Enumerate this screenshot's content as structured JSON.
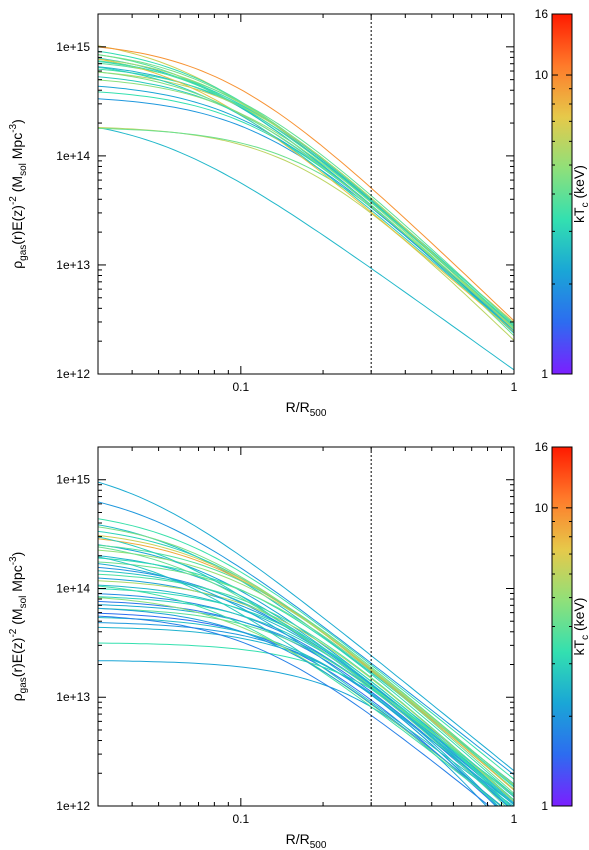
{
  "chart_data": [
    {
      "type": "line",
      "xscale": "log",
      "yscale": "log",
      "xlim": [
        0.03,
        1
      ],
      "ylim": [
        1000000000000.0,
        2000000000000000.0
      ],
      "x_ticks": [
        {
          "value": 0.1,
          "label": "0.1"
        },
        {
          "value": 1,
          "label": "1"
        }
      ],
      "y_ticks": [
        {
          "value": 1000000000000.0,
          "label": "1e+12"
        },
        {
          "value": 10000000000000.0,
          "label": "1e+13"
        },
        {
          "value": 100000000000000.0,
          "label": "1e+14"
        },
        {
          "value": 1000000000000000.0,
          "label": "1e+15"
        }
      ],
      "xlabel": {
        "main": "R/R",
        "sub": "500"
      },
      "ylabel": {
        "main": "ρ",
        "sub1": "gas",
        "mid": "(r)E(z)",
        "sup1": "-2",
        "mid2": " (M",
        "sub2": "sol",
        "mid3": " Mpc",
        "sup2": "-3",
        "end": ")"
      },
      "reference_line_x": 0.3,
      "colorbar": {
        "scale": "log",
        "range": [
          1,
          16
        ],
        "ticks": [
          {
            "value": 1,
            "label": "1"
          },
          {
            "value": 10,
            "label": "10"
          },
          {
            "value": 16,
            "label": "16"
          }
        ],
        "label": {
          "main": "kT",
          "sub": "c",
          "end": " (keV)"
        },
        "colors": [
          "#7b1fff",
          "#2d6cf0",
          "#1aa6d6",
          "#33e0b0",
          "#8fe07a",
          "#e6c94a",
          "#ff7a2a",
          "#ff1a00"
        ]
      },
      "series_param": "beta-model: rho = rho0 (1 + (x/rc)^2)^(-1.5 beta), x = R/R500; kT = colorbar value",
      "series": [
        {
          "rho0": 1300000000000000.0,
          "rc": 0.06,
          "beta": 0.72,
          "kT": 6.5
        },
        {
          "rho0": 1100000000000000.0,
          "rc": 0.07,
          "beta": 0.75,
          "kT": 3.2
        },
        {
          "rho0": 1050000000000000.0,
          "rc": 0.065,
          "beta": 0.73,
          "kT": 3.8
        },
        {
          "rho0": 1000000000000000.0,
          "rc": 0.075,
          "beta": 0.76,
          "kT": 4.4
        },
        {
          "rho0": 950000000000000.0,
          "rc": 0.07,
          "beta": 0.74,
          "kT": 2.6
        },
        {
          "rho0": 900000000000000.0,
          "rc": 0.08,
          "beta": 0.77,
          "kT": 5.2
        },
        {
          "rho0": 1150000000000000.0,
          "rc": 0.085,
          "beta": 0.8,
          "kT": 9.5
        },
        {
          "rho0": 850000000000000.0,
          "rc": 0.08,
          "beta": 0.75,
          "kT": 3.0
        },
        {
          "rho0": 800000000000000.0,
          "rc": 0.09,
          "beta": 0.78,
          "kT": 4.0
        },
        {
          "rho0": 750000000000000.0,
          "rc": 0.085,
          "beta": 0.76,
          "kT": 2.4
        },
        {
          "rho0": 700000000000000.0,
          "rc": 0.095,
          "beta": 0.79,
          "kT": 3.5
        },
        {
          "rho0": 650000000000000.0,
          "rc": 0.1,
          "beta": 0.8,
          "kT": 5.8
        },
        {
          "rho0": 600000000000000.0,
          "rc": 0.09,
          "beta": 0.76,
          "kT": 2.8
        },
        {
          "rho0": 550000000000000.0,
          "rc": 0.1,
          "beta": 0.78,
          "kT": 4.8
        },
        {
          "rho0": 480000000000000.0,
          "rc": 0.1,
          "beta": 0.76,
          "kT": 2.2
        },
        {
          "rho0": 420000000000000.0,
          "rc": 0.11,
          "beta": 0.78,
          "kT": 3.3
        },
        {
          "rho0": 360000000000000.0,
          "rc": 0.115,
          "beta": 0.77,
          "kT": 2.0
        },
        {
          "rho0": 240000000000000.0,
          "rc": 0.05,
          "beta": 0.6,
          "kT": 2.5
        },
        {
          "rho0": 190000000000000.0,
          "rc": 0.16,
          "beta": 0.82,
          "kT": 6.0
        },
        {
          "rho0": 185000000000000.0,
          "rc": 0.18,
          "beta": 0.85,
          "kT": 4.2
        },
        {
          "rho0": 980000000000000.0,
          "rc": 0.06,
          "beta": 0.71,
          "kT": 7.5
        },
        {
          "rho0": 880000000000000.0,
          "rc": 0.075,
          "beta": 0.74,
          "kT": 3.6
        },
        {
          "rho0": 780000000000000.0,
          "rc": 0.07,
          "beta": 0.72,
          "kT": 2.9
        },
        {
          "rho0": 680000000000000.0,
          "rc": 0.08,
          "beta": 0.73,
          "kT": 4.6
        }
      ]
    },
    {
      "type": "line",
      "xscale": "log",
      "yscale": "log",
      "xlim": [
        0.03,
        1
      ],
      "ylim": [
        1000000000000.0,
        2000000000000000.0
      ],
      "x_ticks": [
        {
          "value": 0.1,
          "label": "0.1"
        },
        {
          "value": 1,
          "label": "1"
        }
      ],
      "y_ticks": [
        {
          "value": 1000000000000.0,
          "label": "1e+12"
        },
        {
          "value": 10000000000000.0,
          "label": "1e+13"
        },
        {
          "value": 100000000000000.0,
          "label": "1e+14"
        },
        {
          "value": 1000000000000000.0,
          "label": "1e+15"
        }
      ],
      "xlabel": {
        "main": "R/R",
        "sub": "500"
      },
      "ylabel": {
        "main": "ρ",
        "sub1": "gas",
        "mid": "(r)E(z)",
        "sup1": "-2",
        "mid2": " (M",
        "sub2": "sol",
        "mid3": " Mpc",
        "sup2": "-3",
        "end": ")"
      },
      "reference_line_x": 0.3,
      "colorbar": {
        "scale": "log",
        "range": [
          1,
          16
        ],
        "ticks": [
          {
            "value": 1,
            "label": "1"
          },
          {
            "value": 10,
            "label": "10"
          },
          {
            "value": 16,
            "label": "16"
          }
        ],
        "label": {
          "main": "kT",
          "sub": "c",
          "end": " (keV)"
        },
        "colors": [
          "#7b1fff",
          "#2d6cf0",
          "#1aa6d6",
          "#33e0b0",
          "#8fe07a",
          "#e6c94a",
          "#ff7a2a",
          "#ff1a00"
        ]
      },
      "series_param": "beta-model: rho = rho0 (1 + (x/rc)^2)^(-1.5 beta), x = R/R500; kT = colorbar value",
      "series": [
        {
          "rho0": 1500000000000000.0,
          "rc": 0.04,
          "beta": 0.68,
          "kT": 2.3
        },
        {
          "rho0": 900000000000000.0,
          "rc": 0.045,
          "beta": 0.66,
          "kT": 2.0
        },
        {
          "rho0": 550000000000000.0,
          "rc": 0.06,
          "beta": 0.68,
          "kT": 3.4
        },
        {
          "rho0": 500000000000000.0,
          "rc": 0.055,
          "beta": 0.66,
          "kT": 2.6
        },
        {
          "rho0": 450000000000000.0,
          "rc": 0.065,
          "beta": 0.69,
          "kT": 4.5
        },
        {
          "rho0": 400000000000000.0,
          "rc": 0.07,
          "beta": 0.7,
          "kT": 3.0
        },
        {
          "rho0": 360000000000000.0,
          "rc": 0.075,
          "beta": 0.7,
          "kT": 6.5
        },
        {
          "rho0": 330000000000000.0,
          "rc": 0.08,
          "beta": 0.72,
          "kT": 8.5
        },
        {
          "rho0": 300000000000000.0,
          "rc": 0.07,
          "beta": 0.69,
          "kT": 2.2
        },
        {
          "rho0": 280000000000000.0,
          "rc": 0.09,
          "beta": 0.72,
          "kT": 3.8
        },
        {
          "rho0": 250000000000000.0,
          "rc": 0.095,
          "beta": 0.73,
          "kT": 5.0
        },
        {
          "rho0": 230000000000000.0,
          "rc": 0.08,
          "beta": 0.7,
          "kT": 2.4
        },
        {
          "rho0": 210000000000000.0,
          "rc": 0.1,
          "beta": 0.74,
          "kT": 3.2
        },
        {
          "rho0": 190000000000000.0,
          "rc": 0.11,
          "beta": 0.75,
          "kT": 4.2
        },
        {
          "rho0": 175000000000000.0,
          "rc": 0.09,
          "beta": 0.71,
          "kT": 1.9
        },
        {
          "rho0": 160000000000000.0,
          "rc": 0.1,
          "beta": 0.72,
          "kT": 2.7
        },
        {
          "rho0": 145000000000000.0,
          "rc": 0.12,
          "beta": 0.76,
          "kT": 3.6
        },
        {
          "rho0": 135000000000000.0,
          "rc": 0.11,
          "beta": 0.73,
          "kT": 2.1
        },
        {
          "rho0": 125000000000000.0,
          "rc": 0.13,
          "beta": 0.77,
          "kT": 5.5
        },
        {
          "rho0": 115000000000000.0,
          "rc": 0.12,
          "beta": 0.74,
          "kT": 2.5
        },
        {
          "rho0": 105000000000000.0,
          "rc": 0.14,
          "beta": 0.78,
          "kT": 3.1
        },
        {
          "rho0": 95000000000000.0,
          "rc": 0.13,
          "beta": 0.75,
          "kT": 1.8
        },
        {
          "rho0": 88000000000000.0,
          "rc": 0.15,
          "beta": 0.8,
          "kT": 2.9
        },
        {
          "rho0": 80000000000000.0,
          "rc": 0.14,
          "beta": 0.76,
          "kT": 1.6
        },
        {
          "rho0": 74000000000000.0,
          "rc": 0.16,
          "beta": 0.8,
          "kT": 2.3
        },
        {
          "rho0": 68000000000000.0,
          "rc": 0.17,
          "beta": 0.82,
          "kT": 3.9
        },
        {
          "rho0": 62000000000000.0,
          "rc": 0.15,
          "beta": 0.78,
          "kT": 1.5
        },
        {
          "rho0": 56000000000000.0,
          "rc": 0.18,
          "beta": 0.84,
          "kT": 2.6
        },
        {
          "rho0": 50000000000000.0,
          "rc": 0.2,
          "beta": 0.88,
          "kT": 2.0
        },
        {
          "rho0": 45000000000000.0,
          "rc": 0.22,
          "beta": 0.9,
          "kT": 2.4
        },
        {
          "rho0": 32000000000000.0,
          "rc": 0.3,
          "beta": 0.95,
          "kT": 3.3
        },
        {
          "rho0": 22000000000000.0,
          "rc": 0.32,
          "beta": 1.05,
          "kT": 2.2
        },
        {
          "rho0": 260000000000000.0,
          "rc": 0.05,
          "beta": 0.62,
          "kT": 2.8
        },
        {
          "rho0": 120000000000000.0,
          "rc": 0.08,
          "beta": 0.66,
          "kT": 3.5
        },
        {
          "rho0": 90000000000000.0,
          "rc": 0.1,
          "beta": 0.68,
          "kT": 4.8
        },
        {
          "rho0": 70000000000000.0,
          "rc": 0.12,
          "beta": 0.7,
          "kT": 2.1
        },
        {
          "rho0": 60000000000000.0,
          "rc": 0.11,
          "beta": 0.68,
          "kT": 1.7
        },
        {
          "rho0": 400000000000000.0,
          "rc": 0.05,
          "beta": 0.64,
          "kT": 2.9
        },
        {
          "rho0": 300000000000000.0,
          "rc": 0.06,
          "beta": 0.65,
          "kT": 4.1
        },
        {
          "rho0": 200000000000000.0,
          "rc": 0.07,
          "beta": 0.66,
          "kT": 2.3
        }
      ]
    }
  ]
}
